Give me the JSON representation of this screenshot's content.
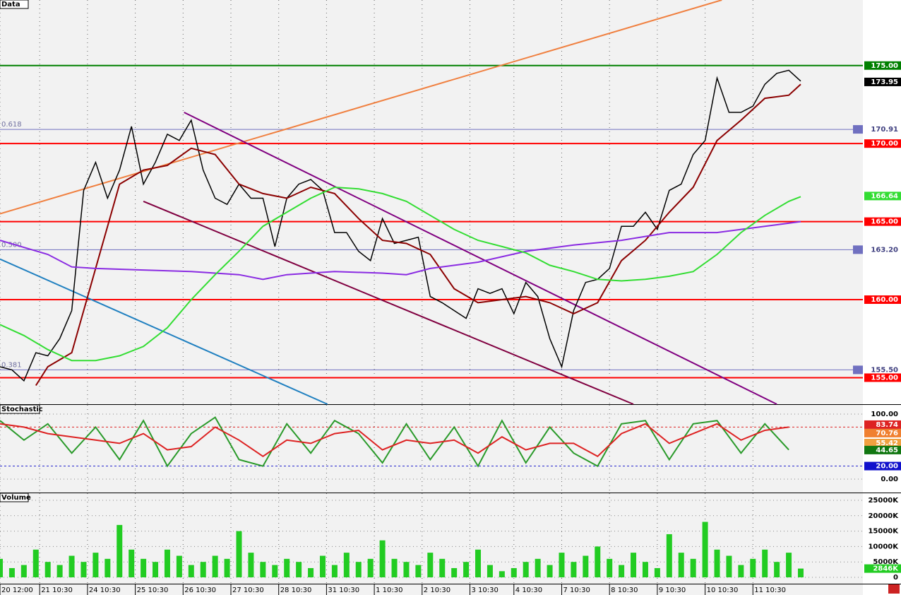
{
  "chart_data": [
    {
      "type": "line",
      "title": "Data",
      "xlim": [
        0,
        18.05
      ],
      "xticks": [
        {
          "value": 0,
          "label": "20 12:00"
        },
        {
          "value": 0.83,
          "label": "21 10:30"
        },
        {
          "value": 1.83,
          "label": "24 10:30"
        },
        {
          "value": 2.83,
          "label": "25 10:30"
        },
        {
          "value": 3.83,
          "label": "26 10:30"
        },
        {
          "value": 4.83,
          "label": "27 10:30"
        },
        {
          "value": 5.83,
          "label": "28 10:30"
        },
        {
          "value": 6.83,
          "label": "31 10:30"
        },
        {
          "value": 7.83,
          "label": "1 10:30"
        },
        {
          "value": 8.83,
          "label": "2 10:30"
        },
        {
          "value": 9.83,
          "label": "3 10:30"
        },
        {
          "value": 10.75,
          "label": "4 10:30"
        },
        {
          "value": 11.75,
          "label": "7 10:30"
        },
        {
          "value": 12.75,
          "label": "8 10:30"
        },
        {
          "value": 13.75,
          "label": "9 10:30"
        },
        {
          "value": 14.75,
          "label": "10 10:30"
        },
        {
          "value": 15.75,
          "label": "11 10:30"
        }
      ],
      "ylim": [
        153.3,
        179.2
      ],
      "yticks": [
        {
          "value": 175,
          "label": "175.00"
        },
        {
          "value": 170,
          "label": "170.00"
        },
        {
          "value": 165,
          "label": "165.00"
        },
        {
          "value": 160,
          "label": "160.00"
        },
        {
          "value": 155,
          "label": "155.00"
        }
      ],
      "level_colors": [
        "#008000",
        "#ff0000",
        "#ff0000",
        "#ff0000",
        "#ff0000"
      ],
      "markers": [
        {
          "value": 173.95,
          "label": "173.95",
          "color": "#000000"
        },
        {
          "value": 166.64,
          "label": "166.64",
          "color": "#33dd33"
        }
      ],
      "fib": [
        {
          "value": 170.91,
          "label": "0.618",
          "price_label": "170.91"
        },
        {
          "value": 163.2,
          "label": "0.500",
          "price_label": "163.20"
        },
        {
          "value": 155.5,
          "label": "0.381",
          "price_label": "155.50"
        }
      ],
      "trendlines": [
        {
          "x": [
            0,
            15.1
          ],
          "y": [
            165.5,
            179.2
          ],
          "color": "#f08040"
        },
        {
          "x": [
            3.85,
            16.25
          ],
          "y": [
            172.0,
            153.3
          ],
          "color": "#800080"
        },
        {
          "x": [
            3.0,
            13.25
          ],
          "y": [
            166.3,
            153.3
          ],
          "color": "#800040"
        },
        {
          "x": [
            0,
            6.85
          ],
          "y": [
            162.6,
            153.3
          ],
          "color": "#2080c0"
        }
      ],
      "series": [
        {
          "color": "#000000",
          "x": [
            0,
            0.25,
            0.5,
            0.75,
            1,
            1.25,
            1.5,
            1.75,
            2,
            2.25,
            2.5,
            2.75,
            3,
            3.25,
            3.5,
            3.75,
            4,
            4.25,
            4.5,
            4.75,
            5,
            5.25,
            5.5,
            5.75,
            6,
            6.25,
            6.5,
            6.75,
            7,
            7.25,
            7.5,
            7.75,
            8,
            8.25,
            8.5,
            8.75,
            9,
            9.25,
            9.5,
            9.75,
            10,
            10.25,
            10.5,
            10.75,
            11,
            11.25,
            11.5,
            11.75,
            12,
            12.25,
            12.5,
            12.75,
            13,
            13.25,
            13.5,
            13.75,
            14,
            14.25,
            14.5,
            14.75,
            15,
            15.25,
            15.5,
            15.75,
            16,
            16.25,
            16.5,
            16.75
          ],
          "values": [
            155.7,
            155.5,
            154.8,
            156.6,
            156.4,
            157.5,
            159.3,
            167.0,
            168.8,
            166.5,
            168.3,
            171.1,
            167.4,
            168.8,
            170.6,
            170.2,
            171.5,
            168.3,
            166.5,
            166.1,
            167.4,
            166.5,
            166.5,
            163.4,
            166.5,
            167.4,
            167.7,
            167.0,
            164.3,
            164.3,
            163.1,
            162.5,
            165.2,
            163.6,
            163.8,
            164.0,
            160.2,
            159.8,
            159.3,
            158.8,
            160.7,
            160.4,
            160.7,
            159.1,
            161.1,
            160.2,
            157.5,
            155.7,
            159.3,
            161.1,
            161.3,
            162.0,
            164.7,
            164.7,
            165.6,
            164.5,
            167.0,
            167.4,
            169.3,
            170.2,
            174.2,
            172.0,
            172.0,
            172.4,
            173.8,
            174.5,
            174.7,
            174.0
          ]
        },
        {
          "color": "#8b0000",
          "x": [
            0.75,
            1,
            1.5,
            2,
            2.5,
            3,
            3.5,
            4,
            4.5,
            5,
            5.5,
            6,
            6.5,
            7,
            7.5,
            8,
            8.5,
            9,
            9.5,
            10,
            10.5,
            11,
            11.5,
            12,
            12.5,
            13,
            13.5,
            14,
            14.5,
            15,
            15.5,
            16,
            16.5,
            16.75
          ],
          "values": [
            154.5,
            155.7,
            156.6,
            162.0,
            167.4,
            168.3,
            168.6,
            169.7,
            169.3,
            167.4,
            166.8,
            166.5,
            167.2,
            166.8,
            165.2,
            163.8,
            163.6,
            162.9,
            160.7,
            159.8,
            160.0,
            160.2,
            159.8,
            159.1,
            159.8,
            162.5,
            163.8,
            165.6,
            167.2,
            170.2,
            171.5,
            172.9,
            173.1,
            173.8
          ]
        },
        {
          "color": "#8a2be2",
          "x": [
            0,
            1,
            1.5,
            2,
            3,
            4,
            5,
            5.5,
            6,
            7,
            8,
            8.5,
            9,
            10,
            11,
            12,
            13,
            14,
            15,
            16,
            16.75
          ],
          "values": [
            163.8,
            162.9,
            162.1,
            162.0,
            161.9,
            161.8,
            161.6,
            161.3,
            161.6,
            161.8,
            161.7,
            161.6,
            162.0,
            162.4,
            163.1,
            163.5,
            163.8,
            164.3,
            164.3,
            164.7,
            165.0
          ]
        },
        {
          "color": "#33dd33",
          "x": [
            0,
            0.5,
            1,
            1.5,
            2,
            2.5,
            3,
            3.5,
            4,
            4.5,
            5,
            5.5,
            6,
            6.5,
            7,
            7.5,
            8,
            8.5,
            9,
            9.5,
            10,
            10.5,
            11,
            11.5,
            12,
            12.5,
            13,
            13.5,
            14,
            14.5,
            15,
            15.5,
            16,
            16.5,
            16.75
          ],
          "values": [
            158.4,
            157.7,
            156.8,
            156.1,
            156.1,
            156.4,
            157.0,
            158.2,
            160.0,
            161.6,
            163.1,
            164.7,
            165.6,
            166.5,
            167.2,
            167.1,
            166.8,
            166.3,
            165.4,
            164.5,
            163.8,
            163.4,
            163.0,
            162.2,
            161.8,
            161.3,
            161.2,
            161.3,
            161.5,
            161.8,
            162.9,
            164.3,
            165.4,
            166.3,
            166.6
          ]
        }
      ]
    },
    {
      "type": "line",
      "title": "Stochastic",
      "ylim": [
        -20.7,
        114.1
      ],
      "yticks": [
        {
          "value": 100,
          "label": "100.00"
        },
        {
          "value": 0,
          "label": "0.00"
        }
      ],
      "reference_lines": [
        {
          "value": 80,
          "color": "#dd2222"
        },
        {
          "value": 20,
          "color": "#2222cc"
        }
      ],
      "markers": [
        {
          "value": 83.74,
          "label": "83.74",
          "color": "#dd2222"
        },
        {
          "value": 70.76,
          "label": "70.76",
          "color": "#f08030"
        },
        {
          "value": 55.42,
          "label": "55.42",
          "color": "#f0a040"
        },
        {
          "value": 44.65,
          "label": "44.65",
          "color": "#117711"
        },
        {
          "value": 20,
          "label": "20.00",
          "color": "#1111cc"
        }
      ],
      "series": [
        {
          "color": "#2a9a2a",
          "x": [
            0,
            0.5,
            1,
            1.5,
            2,
            2.5,
            3,
            3.5,
            4,
            4.5,
            5,
            5.5,
            6,
            6.5,
            7,
            7.5,
            8,
            8.5,
            9,
            9.5,
            10,
            10.5,
            11,
            11.5,
            12,
            12.5,
            13,
            13.5,
            14,
            14.5,
            15,
            15.5,
            16,
            16.5
          ],
          "values": [
            90,
            60,
            85,
            40,
            80,
            30,
            90,
            20,
            70,
            95,
            30,
            20,
            85,
            40,
            90,
            70,
            25,
            85,
            30,
            80,
            20,
            90,
            25,
            80,
            40,
            20,
            85,
            90,
            30,
            85,
            90,
            40,
            85,
            45
          ]
        },
        {
          "color": "#dd2222",
          "x": [
            0,
            0.5,
            1,
            1.5,
            2,
            2.5,
            3,
            3.5,
            4,
            4.5,
            5,
            5.5,
            6,
            6.5,
            7,
            7.5,
            8,
            8.5,
            9,
            9.5,
            10,
            10.5,
            11,
            11.5,
            12,
            12.5,
            13,
            13.5,
            14,
            14.5,
            15,
            15.5,
            16,
            16.5
          ],
          "values": [
            85,
            80,
            70,
            65,
            60,
            55,
            70,
            45,
            50,
            80,
            60,
            35,
            60,
            55,
            70,
            75,
            45,
            60,
            55,
            60,
            40,
            65,
            45,
            55,
            55,
            35,
            70,
            85,
            55,
            70,
            85,
            60,
            75,
            80
          ]
        }
      ]
    },
    {
      "type": "bar",
      "title": "Volume",
      "color": "#22cc22",
      "ylim": [
        -2064,
        27294
      ],
      "yticks": [
        {
          "value": 25000,
          "label": "25000K"
        },
        {
          "value": 20000,
          "label": "20000K"
        },
        {
          "value": 15000,
          "label": "15000K"
        },
        {
          "value": 10000,
          "label": "10000K"
        },
        {
          "value": 5000,
          "label": "5000K"
        },
        0
      ],
      "markers": [
        {
          "value": 2846,
          "label": "2846K",
          "color": "#22cc22"
        }
      ],
      "x": [
        0,
        0.25,
        0.5,
        0.75,
        1,
        1.25,
        1.5,
        1.75,
        2,
        2.25,
        2.5,
        2.75,
        3,
        3.25,
        3.5,
        3.75,
        4,
        4.25,
        4.5,
        4.75,
        5,
        5.25,
        5.5,
        5.75,
        6,
        6.25,
        6.5,
        6.75,
        7,
        7.25,
        7.5,
        7.75,
        8,
        8.25,
        8.5,
        8.75,
        9,
        9.25,
        9.5,
        9.75,
        10,
        10.25,
        10.5,
        10.75,
        11,
        11.25,
        11.5,
        11.75,
        12,
        12.25,
        12.5,
        12.75,
        13,
        13.25,
        13.5,
        13.75,
        14,
        14.25,
        14.5,
        14.75,
        15,
        15.25,
        15.5,
        15.75,
        16,
        16.25,
        16.5,
        16.75
      ],
      "values": [
        6000,
        3000,
        4000,
        9000,
        5000,
        4000,
        7000,
        5000,
        8000,
        6000,
        17000,
        9000,
        6000,
        5000,
        9000,
        7000,
        4000,
        5000,
        7000,
        6000,
        15000,
        8000,
        5000,
        4000,
        6000,
        5000,
        3000,
        7000,
        4000,
        8000,
        5000,
        6000,
        12000,
        6000,
        5000,
        4000,
        8000,
        6000,
        3000,
        5000,
        9000,
        4000,
        2000,
        3000,
        5000,
        6000,
        4000,
        8000,
        5000,
        7000,
        10000,
        6000,
        4000,
        8000,
        5000,
        3000,
        14000,
        8000,
        6000,
        18000,
        9000,
        7000,
        4000,
        6000,
        9000,
        5000,
        8000,
        2846
      ]
    }
  ]
}
